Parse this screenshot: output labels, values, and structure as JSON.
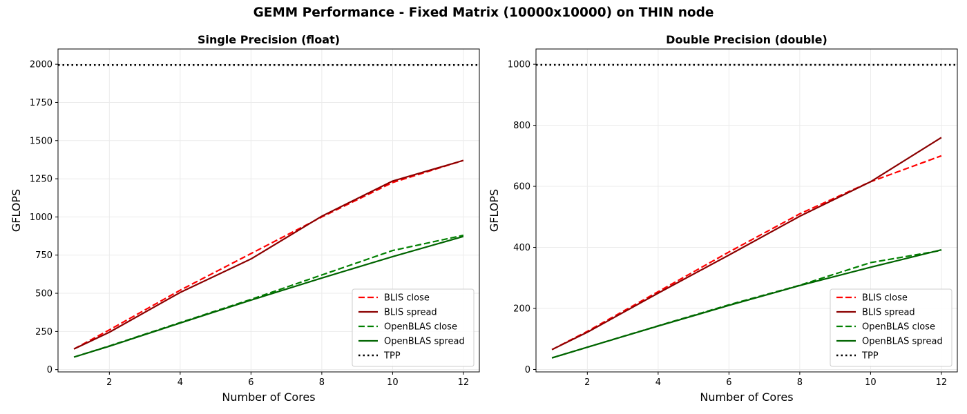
{
  "figure": {
    "suptitle": "GEMM Performance - Fixed Matrix (10000x10000) on THIN node"
  },
  "chart_data": [
    {
      "type": "line",
      "title": "Single Precision (float)",
      "xlabel": "Number of Cores",
      "ylabel": "GFLOPS",
      "x": [
        1,
        2,
        4,
        6,
        8,
        10,
        12
      ],
      "xlim": [
        0.55,
        12.45
      ],
      "ylim": [
        -15,
        2100
      ],
      "xticks": [
        2,
        4,
        6,
        8,
        10,
        12
      ],
      "yticks": [
        0,
        250,
        500,
        750,
        1000,
        1250,
        1500,
        1750,
        2000
      ],
      "grid": true,
      "legend_position": "lower-right",
      "series": [
        {
          "name": "BLIS close",
          "values": [
            135,
            260,
            520,
            760,
            1000,
            1225,
            1370
          ],
          "color": "#ff0000",
          "style": "dashed"
        },
        {
          "name": "BLIS spread",
          "values": [
            135,
            245,
            505,
            725,
            1005,
            1235,
            1370
          ],
          "color": "#8b0000",
          "style": "solid"
        },
        {
          "name": "OpenBLAS close",
          "values": [
            82,
            155,
            308,
            460,
            620,
            780,
            880
          ],
          "color": "#008000",
          "style": "dashed"
        },
        {
          "name": "OpenBLAS spread",
          "values": [
            82,
            153,
            305,
            455,
            600,
            740,
            872
          ],
          "color": "#006400",
          "style": "solid"
        },
        {
          "name": "TPP",
          "constant": 1995,
          "color": "#000000",
          "style": "dotted"
        }
      ]
    },
    {
      "type": "line",
      "title": "Double Precision (double)",
      "xlabel": "Number of Cores",
      "ylabel": "GFLOPS",
      "x": [
        1,
        2,
        4,
        6,
        8,
        10,
        12
      ],
      "xlim": [
        0.55,
        12.45
      ],
      "ylim": [
        -8,
        1050
      ],
      "xticks": [
        2,
        4,
        6,
        8,
        10,
        12
      ],
      "yticks": [
        0,
        200,
        400,
        600,
        800,
        1000
      ],
      "grid": true,
      "legend_position": "lower-right",
      "series": [
        {
          "name": "BLIS close",
          "values": [
            65,
            125,
            255,
            385,
            510,
            615,
            700
          ],
          "color": "#ff0000",
          "style": "dashed"
        },
        {
          "name": "BLIS spread",
          "values": [
            65,
            122,
            250,
            375,
            502,
            615,
            760
          ],
          "color": "#8b0000",
          "style": "solid"
        },
        {
          "name": "OpenBLAS close",
          "values": [
            38,
            73,
            143,
            212,
            276,
            350,
            390
          ],
          "color": "#008000",
          "style": "dashed"
        },
        {
          "name": "OpenBLAS spread",
          "values": [
            38,
            73,
            142,
            210,
            275,
            335,
            392
          ],
          "color": "#006400",
          "style": "solid"
        },
        {
          "name": "TPP",
          "constant": 998,
          "color": "#000000",
          "style": "dotted"
        }
      ]
    }
  ]
}
